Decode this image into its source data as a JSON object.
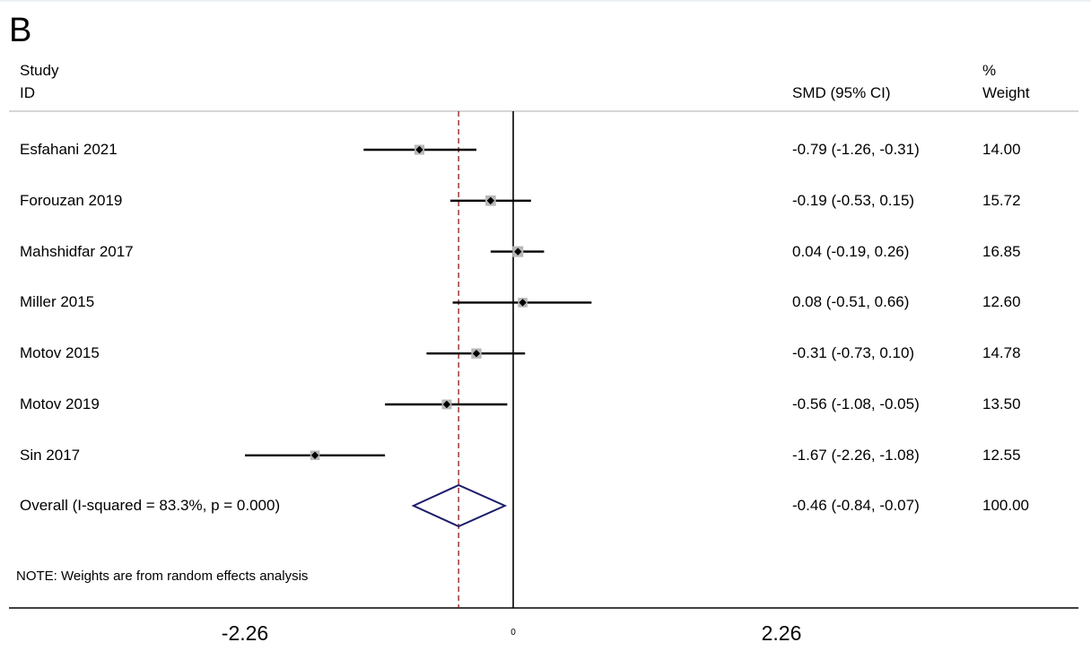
{
  "panel_label": "B",
  "header": {
    "study_line1": "Study",
    "study_line2": "ID",
    "effect_label": "SMD (95% CI)",
    "weight_line1": "%",
    "weight_line2": "Weight"
  },
  "note": "NOTE: Weights are from random effects analysis",
  "chart_data": {
    "type": "forest",
    "measure": "SMD (95% CI)",
    "studies": [
      {
        "id": "Esfahani 2021",
        "smd": -0.79,
        "lower": -1.26,
        "upper": -0.31,
        "ci_text": "-0.79 (-1.26, -0.31)",
        "weight": "14.00"
      },
      {
        "id": "Forouzan 2019",
        "smd": -0.19,
        "lower": -0.53,
        "upper": 0.15,
        "ci_text": "-0.19 (-0.53, 0.15)",
        "weight": "15.72"
      },
      {
        "id": "Mahshidfar 2017",
        "smd": 0.04,
        "lower": -0.19,
        "upper": 0.26,
        "ci_text": "0.04 (-0.19, 0.26)",
        "weight": "16.85"
      },
      {
        "id": "Miller 2015",
        "smd": 0.08,
        "lower": -0.51,
        "upper": 0.66,
        "ci_text": "0.08 (-0.51, 0.66)",
        "weight": "12.60"
      },
      {
        "id": "Motov 2015",
        "smd": -0.31,
        "lower": -0.73,
        "upper": 0.1,
        "ci_text": "-0.31 (-0.73, 0.10)",
        "weight": "14.78"
      },
      {
        "id": "Motov 2019",
        "smd": -0.56,
        "lower": -1.08,
        "upper": -0.05,
        "ci_text": "-0.56 (-1.08, -0.05)",
        "weight": "13.50"
      },
      {
        "id": "Sin 2017",
        "smd": -1.67,
        "lower": -2.26,
        "upper": -1.08,
        "ci_text": "-1.67 (-2.26, -1.08)",
        "weight": "12.55"
      }
    ],
    "overall": {
      "label": "Overall  (I-squared = 83.3%, p = 0.000)",
      "smd": -0.46,
      "lower": -0.84,
      "upper": -0.07,
      "ci_text": "-0.46 (-0.84, -0.07)",
      "weight": "100.00"
    },
    "x_ticks": [
      {
        "value": -2.26,
        "label": "-2.26"
      },
      {
        "value": 0,
        "label": "0"
      },
      {
        "value": 2.26,
        "label": "2.26"
      }
    ],
    "xlim": [
      -4.26,
      4.76
    ],
    "colors": {
      "ci_line": "#000000",
      "weight_box": "#b8b8b8",
      "null_line": "#000000",
      "overall_line": "#8b1a1a",
      "diamond": "#1c1c6b",
      "header_rule": "#c8c8c8"
    }
  }
}
